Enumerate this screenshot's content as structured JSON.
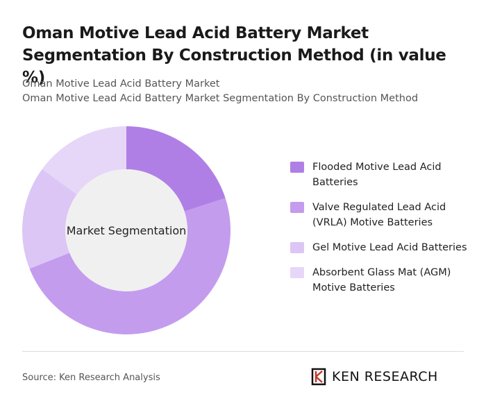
{
  "chart_data": {
    "type": "pie",
    "title": "Oman Motive Lead Acid Battery Market Segmentation By Construction Method (in value %)",
    "subtitle": [
      "Oman Motive Lead Acid Battery Market",
      "Oman Motive Lead Acid Battery Market Segmentation By Construction Method"
    ],
    "center_label": "Market Segmentation",
    "categories": [
      "Flooded Motive Lead Acid Batteries",
      "Valve Regulated Lead Acid (VRLA) Motive Batteries",
      "Gel Motive Lead Acid Batteries",
      "Absorbent Glass Mat (AGM) Motive Batteries"
    ],
    "values": [
      20,
      49,
      16,
      15
    ],
    "colors": [
      "#b07fe6",
      "#c49cee",
      "#dcc6f5",
      "#e6d6f8"
    ]
  },
  "footer": {
    "source": "Source: Ken Research Analysis",
    "logo": "KEN RESEARCH"
  }
}
